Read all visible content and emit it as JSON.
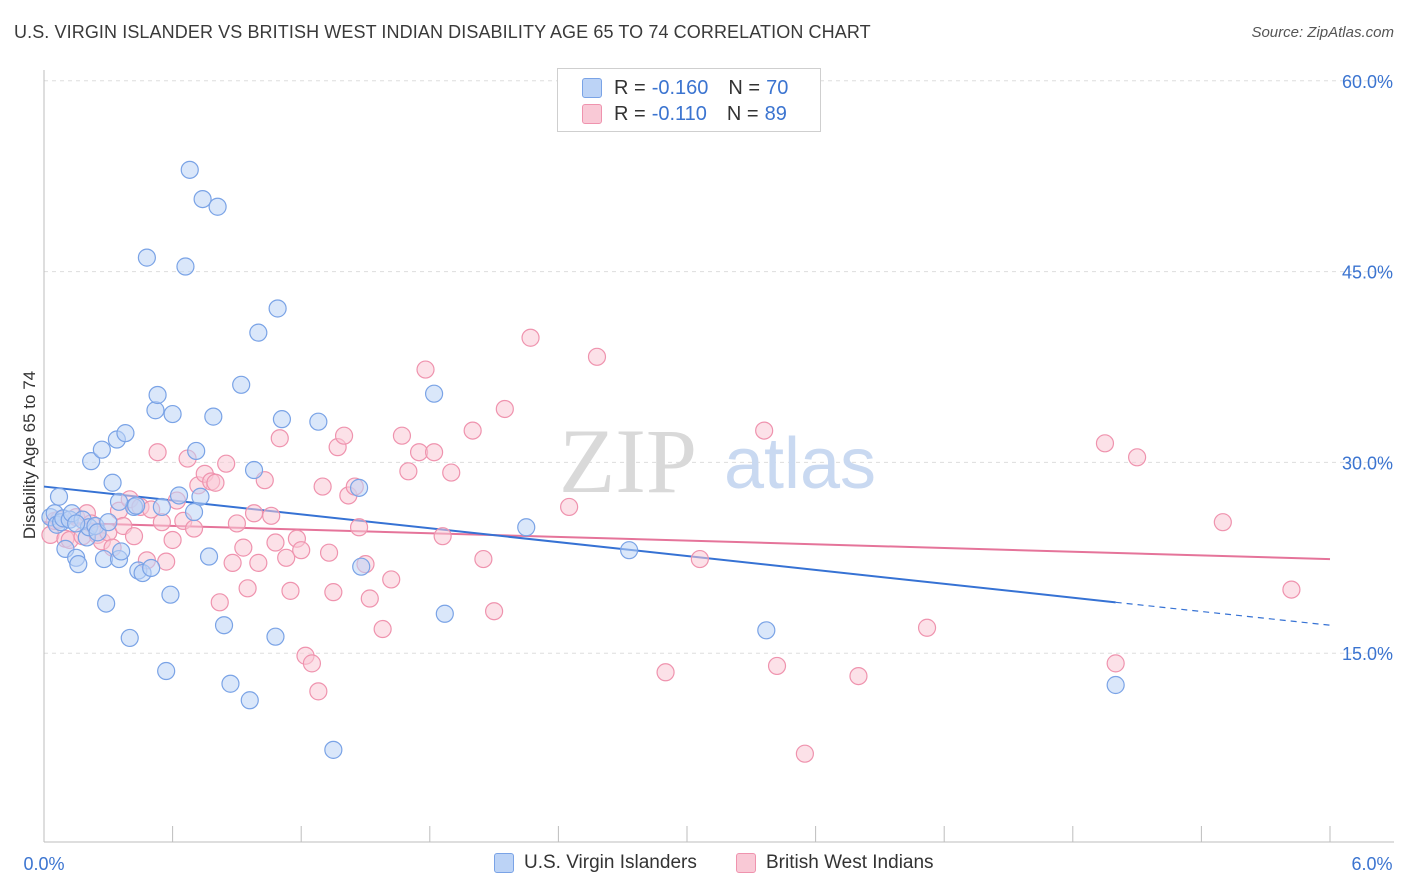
{
  "title": "U.S. VIRGIN ISLANDER VS BRITISH WEST INDIAN DISABILITY AGE 65 TO 74 CORRELATION CHART",
  "source": "Source: ZipAtlas.com",
  "watermark": {
    "zip": "ZIP",
    "atlas": "atlas"
  },
  "legend": {
    "rows": [
      {
        "r_label": "R =",
        "r_value": "-0.160",
        "n_label": "N =",
        "n_value": "70"
      },
      {
        "r_label": "R =",
        "r_value": "-0.110",
        "n_label": "N =",
        "n_value": "89"
      }
    ]
  },
  "bottom_legend": [
    "U.S. Virgin Islanders",
    "British West Indians"
  ],
  "colors": {
    "blue_fill": "#bcd3f6",
    "blue_stroke": "#7aa3e6",
    "blue_line": "#3672d4",
    "pink_fill": "#f9c9d6",
    "pink_stroke": "#ef93ae",
    "pink_line": "#e5749a",
    "tick_label": "#3b74d0",
    "grid": "#dddddd"
  },
  "chart_data": {
    "type": "scatter",
    "title": "U.S. VIRGIN ISLANDER VS BRITISH WEST INDIAN DISABILITY AGE 65 TO 74 CORRELATION CHART",
    "xlabel": "",
    "ylabel": "Disability Age 65 to 74",
    "xlim": [
      0,
      6
    ],
    "ylim": [
      0,
      62
    ],
    "x_tick_labels": [
      "0.0%",
      "6.0%"
    ],
    "y_ticks": [
      15,
      30,
      45,
      60
    ],
    "y_tick_labels": [
      "15.0%",
      "30.0%",
      "45.0%",
      "60.0%"
    ],
    "grid": true,
    "series": [
      {
        "name": "U.S. Virgin Islanders",
        "r": -0.16,
        "n": 70,
        "trend": {
          "x0": 0.0,
          "y0": 28.1,
          "x1": 5.0,
          "y1": 19.0,
          "dash_to_x": 6.0,
          "dash_to_y": 17.2
        },
        "points": [
          [
            0.03,
            25.7
          ],
          [
            0.05,
            26.0
          ],
          [
            0.06,
            25.1
          ],
          [
            0.07,
            27.3
          ],
          [
            0.08,
            25.3
          ],
          [
            0.09,
            25.6
          ],
          [
            0.1,
            23.2
          ],
          [
            0.12,
            25.5
          ],
          [
            0.13,
            26.0
          ],
          [
            0.15,
            22.5
          ],
          [
            0.16,
            22.0
          ],
          [
            0.18,
            25.5
          ],
          [
            0.2,
            24.1
          ],
          [
            0.21,
            24.9
          ],
          [
            0.22,
            30.1
          ],
          [
            0.24,
            25.0
          ],
          [
            0.25,
            24.5
          ],
          [
            0.27,
            31.0
          ],
          [
            0.28,
            22.4
          ],
          [
            0.29,
            18.9
          ],
          [
            0.3,
            25.3
          ],
          [
            0.32,
            28.4
          ],
          [
            0.34,
            31.8
          ],
          [
            0.35,
            22.4
          ],
          [
            0.36,
            23.0
          ],
          [
            0.38,
            32.3
          ],
          [
            0.4,
            16.2
          ],
          [
            0.42,
            26.5
          ],
          [
            0.44,
            21.5
          ],
          [
            0.46,
            21.3
          ],
          [
            0.48,
            46.1
          ],
          [
            0.5,
            21.7
          ],
          [
            0.52,
            34.1
          ],
          [
            0.53,
            35.3
          ],
          [
            0.57,
            13.6
          ],
          [
            0.59,
            19.6
          ],
          [
            0.6,
            33.8
          ],
          [
            0.63,
            27.4
          ],
          [
            0.66,
            45.4
          ],
          [
            0.68,
            53.0
          ],
          [
            0.7,
            26.1
          ],
          [
            0.71,
            30.9
          ],
          [
            0.73,
            27.3
          ],
          [
            0.74,
            50.7
          ],
          [
            0.77,
            22.6
          ],
          [
            0.79,
            33.6
          ],
          [
            0.81,
            50.1
          ],
          [
            0.84,
            17.2
          ],
          [
            0.87,
            12.6
          ],
          [
            0.92,
            36.1
          ],
          [
            0.96,
            11.3
          ],
          [
            0.98,
            29.4
          ],
          [
            1.08,
            16.3
          ],
          [
            1.09,
            42.1
          ],
          [
            1.11,
            33.4
          ],
          [
            1.28,
            33.2
          ],
          [
            1.35,
            7.4
          ],
          [
            1.47,
            28.0
          ],
          [
            1.48,
            21.8
          ],
          [
            1.82,
            35.4
          ],
          [
            1.87,
            18.1
          ],
          [
            2.25,
            24.9
          ],
          [
            2.73,
            23.1
          ],
          [
            3.37,
            16.8
          ],
          [
            5.0,
            12.5
          ],
          [
            0.43,
            26.6
          ],
          [
            1.0,
            40.2
          ],
          [
            0.35,
            26.9
          ],
          [
            0.15,
            25.2
          ],
          [
            0.55,
            26.5
          ]
        ]
      },
      {
        "name": "British West Indians",
        "r": -0.11,
        "n": 89,
        "trend": {
          "x0": 0.0,
          "y0": 25.3,
          "x1": 6.0,
          "y1": 22.4
        },
        "points": [
          [
            0.03,
            24.3
          ],
          [
            0.05,
            25.4
          ],
          [
            0.07,
            25.5
          ],
          [
            0.1,
            24.0
          ],
          [
            0.12,
            23.9
          ],
          [
            0.15,
            25.7
          ],
          [
            0.18,
            24.2
          ],
          [
            0.2,
            26.0
          ],
          [
            0.22,
            25.2
          ],
          [
            0.25,
            24.3
          ],
          [
            0.27,
            23.8
          ],
          [
            0.3,
            24.5
          ],
          [
            0.32,
            23.3
          ],
          [
            0.35,
            26.2
          ],
          [
            0.37,
            25.0
          ],
          [
            0.4,
            27.1
          ],
          [
            0.42,
            24.2
          ],
          [
            0.45,
            26.5
          ],
          [
            0.48,
            22.3
          ],
          [
            0.5,
            26.3
          ],
          [
            0.53,
            30.8
          ],
          [
            0.55,
            25.3
          ],
          [
            0.57,
            22.2
          ],
          [
            0.6,
            23.9
          ],
          [
            0.62,
            27.0
          ],
          [
            0.65,
            25.4
          ],
          [
            0.67,
            30.3
          ],
          [
            0.7,
            24.8
          ],
          [
            0.72,
            28.2
          ],
          [
            0.75,
            29.1
          ],
          [
            0.78,
            28.5
          ],
          [
            0.8,
            28.4
          ],
          [
            0.82,
            19.0
          ],
          [
            0.85,
            29.9
          ],
          [
            0.88,
            22.1
          ],
          [
            0.9,
            25.2
          ],
          [
            0.93,
            23.3
          ],
          [
            0.95,
            20.1
          ],
          [
            0.98,
            26.0
          ],
          [
            1.0,
            22.1
          ],
          [
            1.03,
            28.6
          ],
          [
            1.06,
            25.8
          ],
          [
            1.08,
            23.7
          ],
          [
            1.1,
            31.9
          ],
          [
            1.13,
            22.5
          ],
          [
            1.15,
            19.9
          ],
          [
            1.18,
            24.0
          ],
          [
            1.2,
            23.1
          ],
          [
            1.22,
            14.8
          ],
          [
            1.25,
            14.2
          ],
          [
            1.28,
            12.0
          ],
          [
            1.3,
            28.1
          ],
          [
            1.33,
            22.9
          ],
          [
            1.35,
            19.8
          ],
          [
            1.37,
            31.2
          ],
          [
            1.4,
            32.1
          ],
          [
            1.42,
            27.4
          ],
          [
            1.45,
            28.1
          ],
          [
            1.47,
            24.9
          ],
          [
            1.5,
            22.0
          ],
          [
            1.52,
            19.3
          ],
          [
            1.58,
            16.9
          ],
          [
            1.62,
            20.8
          ],
          [
            1.67,
            32.1
          ],
          [
            1.7,
            29.3
          ],
          [
            1.75,
            30.8
          ],
          [
            1.78,
            37.3
          ],
          [
            1.82,
            30.8
          ],
          [
            1.86,
            24.2
          ],
          [
            1.9,
            29.2
          ],
          [
            2.0,
            32.5
          ],
          [
            2.05,
            22.4
          ],
          [
            2.1,
            18.3
          ],
          [
            2.15,
            34.2
          ],
          [
            2.27,
            39.8
          ],
          [
            2.45,
            26.5
          ],
          [
            2.58,
            38.3
          ],
          [
            2.9,
            13.5
          ],
          [
            3.06,
            22.4
          ],
          [
            3.36,
            32.5
          ],
          [
            3.42,
            14.0
          ],
          [
            3.55,
            7.1
          ],
          [
            3.8,
            13.2
          ],
          [
            4.12,
            17.0
          ],
          [
            4.95,
            31.5
          ],
          [
            5.0,
            14.2
          ],
          [
            5.1,
            30.4
          ],
          [
            5.5,
            25.3
          ],
          [
            5.82,
            20.0
          ]
        ]
      }
    ]
  }
}
